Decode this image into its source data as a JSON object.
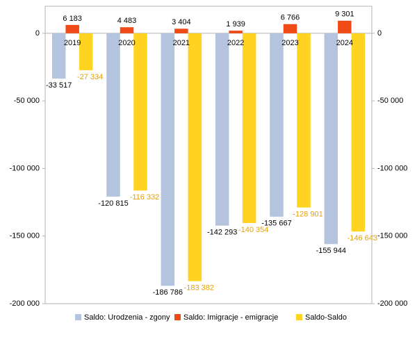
{
  "chart_data": {
    "type": "bar",
    "categories": [
      "2019",
      "2020",
      "2021",
      "2022",
      "2023",
      "2024"
    ],
    "series": [
      {
        "name": "Saldo: Urodzenia - zgony",
        "color": "#b4c4de",
        "label_color": "#000000",
        "values": [
          -33517,
          -120815,
          -186786,
          -142293,
          -135667,
          -155944
        ],
        "value_labels": [
          "-33 517",
          "-120 815",
          "-186 786",
          "-142 293",
          "-135 667",
          "-155 944"
        ]
      },
      {
        "name": "Saldo: Imigracje - emigracje",
        "color": "#f04a17",
        "label_color": "#000000",
        "values": [
          6183,
          4483,
          3404,
          1939,
          6766,
          9301
        ],
        "value_labels": [
          "6 183",
          "4 483",
          "3 404",
          "1 939",
          "6 766",
          "9 301"
        ]
      },
      {
        "name": "Saldo-Saldo",
        "color": "#ffd320",
        "label_color": "#e6a000",
        "values": [
          -27334,
          -116332,
          -183382,
          -140354,
          -128901,
          -146643
        ],
        "value_labels": [
          "-27 334",
          "-116 332",
          "-183 382",
          "-140 354",
          "-128 901",
          "-146 643"
        ]
      }
    ],
    "ylim": [
      -200000,
      20000
    ],
    "yticks": [
      0,
      {
        "value": -50000,
        "label": "-50 000"
      },
      {
        "value": -100000,
        "label": "-100 000"
      },
      {
        "value": -150000,
        "label": "-150 000"
      },
      {
        "value": -200000,
        "label": "-200 000"
      }
    ],
    "y2lim": [
      -200000,
      20000
    ],
    "y2ticks": [
      0,
      {
        "value": -50000,
        "label": "-50 000"
      },
      {
        "value": -100000,
        "label": "-100 000"
      },
      {
        "value": -150000,
        "label": "-150 000"
      },
      {
        "value": -200000,
        "label": "-200 000"
      }
    ],
    "legend": "bottom"
  }
}
